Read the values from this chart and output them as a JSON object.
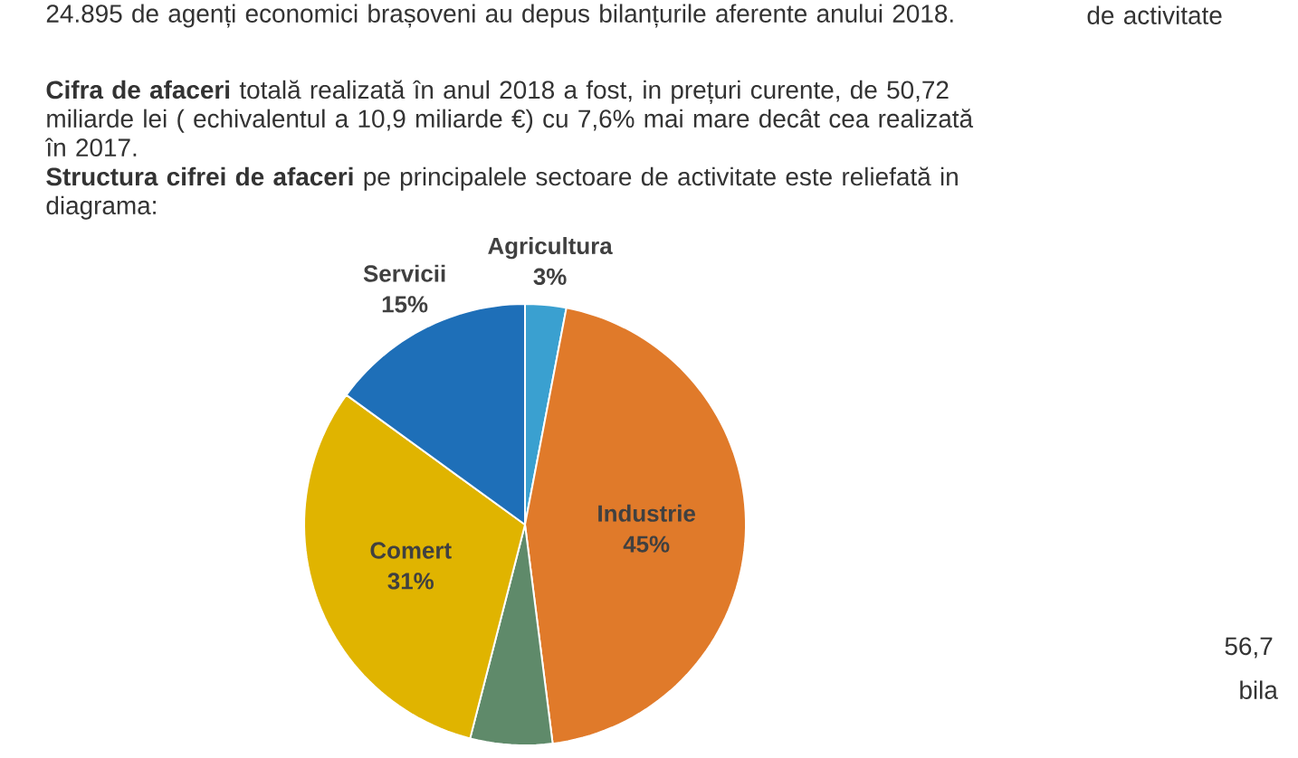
{
  "chart_data": {
    "type": "pie",
    "title": "**Structura cifrei de afaceri** pe principalele sectoare de activitate este reliefată in diagrama:",
    "categories": [
      "Agricultura",
      "Industrie",
      null,
      "Comert",
      "Servicii"
    ],
    "values": [
      3,
      45,
      6,
      31,
      15
    ],
    "value_labels": [
      "3%",
      "45%",
      null,
      "31%",
      "15%"
    ],
    "colors": [
      "#3aa0d0",
      "#e07a2a",
      "#5f8a6a",
      "#e0b400",
      "#1e6fb8"
    ],
    "annotations": [
      "24.895 de agenți economici brașoveni au depus bilanțurile aferente anului 2018.",
      "**Cifra de afaceri** totală realizată în anul 2018 a fost, in prețuri curente, de 50,72 miliarde lei ( echivalentul a 10,9 miliarde €) cu 7,6% mai mare decât cea realizată în 2017.",
      "de activitate",
      "56,7",
      "bila"
    ]
  }
}
